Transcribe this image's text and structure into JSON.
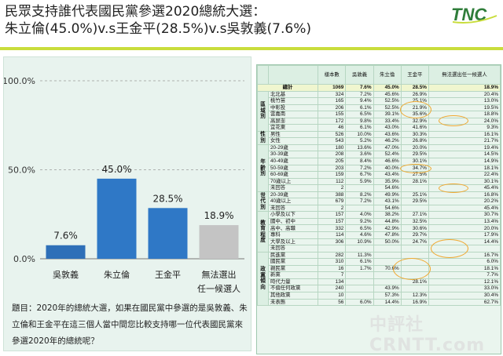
{
  "title_line1": "民眾支持誰代表國民黨參選2020總統大選：",
  "title_line2": "朱立倫(45.0%)v.s王金平(28.5%)v.s吳敦義(7.6%)",
  "logo_text": "TNC",
  "brand_colors": {
    "accent": "#c9dd3c",
    "bar_dark": "#2e6fb8",
    "bar_main": "#2f78c6",
    "bar_grey": "#c4c4c4"
  },
  "question": "題目：2020年的總統大選，如果在國民黨中參選的是吳敦義、朱立倫和王金平在這三個人當中間您比較支持哪一位代表國民黨來參選2020年的總統呢？",
  "chart_data": {
    "type": "bar",
    "categories": [
      "吳敦義",
      "朱立倫",
      "王金平",
      "無法選出\n任一候選人"
    ],
    "values": [
      7.6,
      45.0,
      28.5,
      18.9
    ],
    "value_labels": [
      "7.6%",
      "45.0%",
      "28.5%",
      "18.9%"
    ],
    "ylim": [
      0,
      100
    ],
    "yticks": [
      0,
      50,
      100
    ],
    "ytick_labels": [
      "0.0%",
      "50.0%",
      "100.0%"
    ],
    "grid": true
  },
  "table": {
    "headers": [
      "",
      "",
      "樣本數",
      "吳敦義",
      "朱立倫",
      "王金平",
      "無法選出任一候選人"
    ],
    "total": [
      "總計",
      "1069",
      "7.6%",
      "45.0%",
      "28.5%",
      "18.9%"
    ],
    "groups": [
      {
        "name": "區域別",
        "rows": [
          [
            "北北基",
            "324",
            "7.2%",
            "45.6%",
            "26.9%",
            "20.4%"
          ],
          [
            "桃竹苗",
            "165",
            "9.4%",
            "52.5%",
            "25.1%",
            "13.0%"
          ],
          [
            "中彰投",
            "206",
            "6.1%",
            "52.5%",
            "21.9%",
            "19.5%"
          ],
          [
            "雲嘉南",
            "155",
            "6.5%",
            "39.1%",
            "35.6%",
            "18.8%"
          ],
          [
            "高屏澎",
            "172",
            "9.8%",
            "33.4%",
            "32.9%",
            "24.0%"
          ],
          [
            "宜花東",
            "46",
            "6.1%",
            "43.0%",
            "41.6%",
            "9.3%"
          ]
        ]
      },
      {
        "name": "性別",
        "rows": [
          [
            "男性",
            "526",
            "10.0%",
            "43.6%",
            "30.3%",
            "16.1%"
          ],
          [
            "女性",
            "543",
            "5.2%",
            "46.2%",
            "26.8%",
            "21.7%"
          ]
        ]
      },
      {
        "name": "年齡別",
        "rows": [
          [
            "20-29歲",
            "180",
            "13.6%",
            "47.0%",
            "20.0%",
            "19.4%"
          ],
          [
            "30-39歲",
            "208",
            "3.6%",
            "52.4%",
            "29.5%",
            "14.5%"
          ],
          [
            "40-49歲",
            "205",
            "8.4%",
            "46.6%",
            "30.1%",
            "14.9%"
          ],
          [
            "50-59歲",
            "203",
            "7.2%",
            "40.0%",
            "34.7%",
            "18.1%"
          ],
          [
            "60-69歲",
            "159",
            "6.7%",
            "43.4%",
            "27.5%",
            "22.4%"
          ],
          [
            "70歲以上",
            "112",
            "5.9%",
            "35.9%",
            "28.1%",
            "30.1%"
          ],
          [
            "未回答",
            "2",
            "",
            "54.6%",
            "",
            "45.4%"
          ]
        ]
      },
      {
        "name": "世代別",
        "rows": [
          [
            "20-39歲",
            "388",
            "8.2%",
            "49.9%",
            "25.1%",
            "16.8%"
          ],
          [
            "40歲以上",
            "679",
            "7.2%",
            "43.1%",
            "29.5%",
            "20.2%"
          ],
          [
            "未回答",
            "2",
            "",
            "54.6%",
            "",
            "45.4%"
          ]
        ]
      },
      {
        "name": "教育程度",
        "rows": [
          [
            "小學及以下",
            "157",
            "4.0%",
            "38.2%",
            "27.1%",
            "30.7%"
          ],
          [
            "國中、初中",
            "157",
            "9.2%",
            "44.8%",
            "32.5%",
            "13.4%"
          ],
          [
            "高中、高職",
            "332",
            "6.5%",
            "42.9%",
            "30.6%",
            "20.0%"
          ],
          [
            "專科",
            "114",
            "4.6%",
            "47.8%",
            "29.7%",
            "17.9%"
          ],
          [
            "大學及以上",
            "306",
            "10.9%",
            "50.0%",
            "24.7%",
            "14.4%"
          ],
          [
            "未回答",
            "",
            "",
            "",
            "",
            ""
          ]
        ]
      },
      {
        "name": "政黨傾向",
        "rows": [
          [
            "民進黨",
            "282",
            "11.3%",
            "",
            "",
            "16.7%"
          ],
          [
            "國民黨",
            "310",
            "6.1%",
            "",
            "",
            "6.0%"
          ],
          [
            "親民黨",
            "16",
            "1.7%",
            "70.6%",
            "",
            "18.1%"
          ],
          [
            "新黨",
            "7",
            "",
            "",
            "",
            "7.7%"
          ],
          [
            "時代力量",
            "134",
            "",
            "",
            "28.1%",
            "12.1%"
          ],
          [
            "不偏任何政黨",
            "240",
            "",
            "43.9%",
            "",
            "33.0%"
          ],
          [
            "其他政黨",
            "10",
            "",
            "57.3%",
            "12.3%",
            "30.4%"
          ],
          [
            "未表態",
            "56",
            "6.0%",
            "14.4%",
            "16.9%",
            "62.7%"
          ]
        ]
      }
    ]
  },
  "watermark": "中評社 CRNTT.com"
}
